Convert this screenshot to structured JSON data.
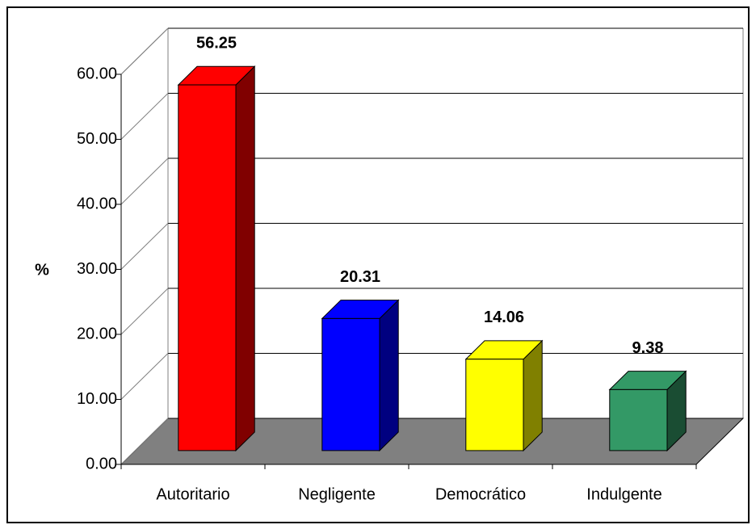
{
  "chart_data": {
    "type": "bar3d",
    "y_axis_label": "%",
    "categories": [
      "Autoritario",
      "Negligente",
      "Democrático",
      "Indulgente"
    ],
    "values": [
      56.25,
      20.31,
      14.06,
      9.38
    ],
    "colors": [
      "#ff0000",
      "#0000ff",
      "#ffff00",
      "#339966"
    ],
    "ylim": [
      0,
      60
    ],
    "yticks": [
      {
        "value": 0,
        "label": "0.00"
      },
      {
        "value": 10,
        "label": "10.00"
      },
      {
        "value": 20,
        "label": "20.00"
      },
      {
        "value": 30,
        "label": "30.00"
      },
      {
        "value": 40,
        "label": "40.00"
      },
      {
        "value": 50,
        "label": "50.00"
      },
      {
        "value": 60,
        "label": "60.00"
      }
    ],
    "grid": true
  }
}
